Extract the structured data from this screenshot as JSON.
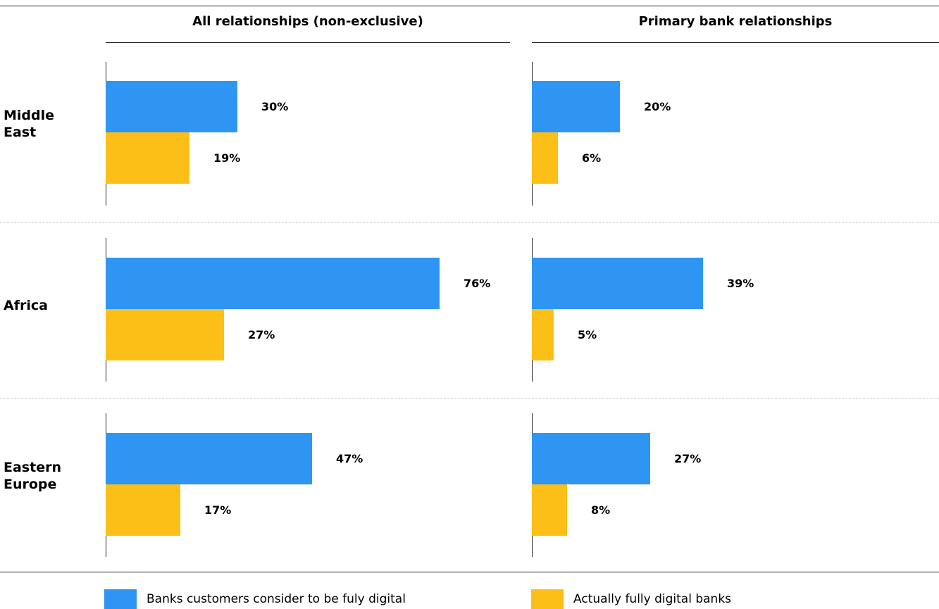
{
  "chart_data": {
    "type": "bar",
    "orientation": "horizontal",
    "panels": [
      "All relationships (non-exclusive)",
      "Primary bank relationships"
    ],
    "categories": [
      "Middle\nEast",
      "Africa",
      "Eastern\nEurope"
    ],
    "series": [
      {
        "name": "Banks customers consider to be fuly digital",
        "color": "#2f95f2",
        "values": [
          [
            30,
            76,
            47
          ],
          [
            20,
            39,
            27
          ]
        ],
        "labels": [
          [
            "30%",
            "76%",
            "47%"
          ],
          [
            "20%",
            "39%",
            "27%"
          ]
        ]
      },
      {
        "name": "Actually fully digital banks",
        "color": "#fbbf17",
        "values": [
          [
            19,
            27,
            17
          ],
          [
            6,
            5,
            8
          ]
        ],
        "labels": [
          [
            "19%",
            "27%",
            "17%"
          ],
          [
            "6%",
            "5%",
            "8%"
          ]
        ]
      }
    ],
    "unit": "%",
    "legend_position": "bottom"
  }
}
